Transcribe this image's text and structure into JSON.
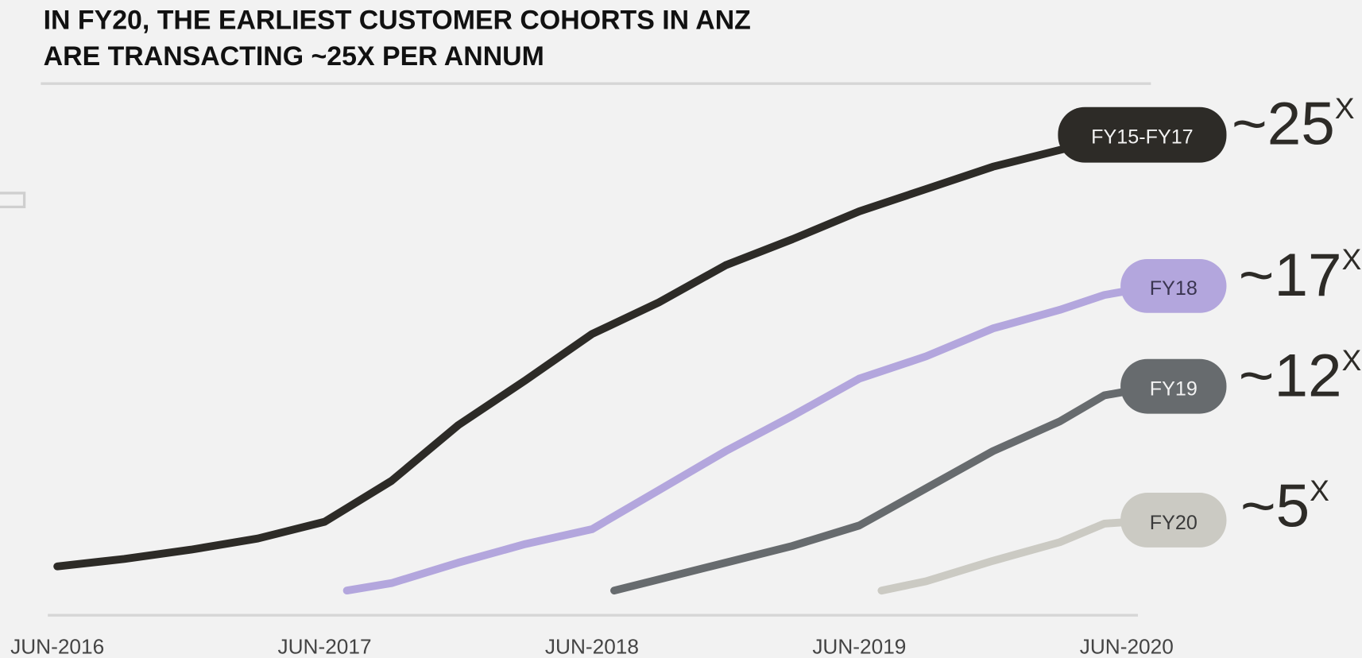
{
  "chart_data": {
    "type": "line",
    "title": "IN FY20, THE EARLIEST CUSTOMER COHORTS IN ANZ",
    "title_line2": "ARE TRANSACTING ~25X PER ANNUM",
    "xlabel": "",
    "ylabel": "",
    "x_ticks": [
      "JUN-2016",
      "JUN-2017",
      "JUN-2018",
      "JUN-2019",
      "JUN-2020"
    ],
    "xlim": [
      "2016-06",
      "2020-06"
    ],
    "ylim": [
      0,
      27
    ],
    "grid": false,
    "legend": "end-of-line labels",
    "series": [
      {
        "name": "FY15-FY17",
        "end_label": "~25",
        "end_sup": "X",
        "color": "#2d2b27",
        "label_text_color": "#f2f2f2",
        "points": [
          [
            "2016-06",
            2.3
          ],
          [
            "2016-09",
            2.7
          ],
          [
            "2016-12",
            3.2
          ],
          [
            "2017-03",
            3.8
          ],
          [
            "2017-06",
            4.7
          ],
          [
            "2017-09",
            6.9
          ],
          [
            "2017-12",
            9.9
          ],
          [
            "2018-03",
            12.3
          ],
          [
            "2018-06",
            14.8
          ],
          [
            "2018-09",
            16.5
          ],
          [
            "2018-12",
            18.5
          ],
          [
            "2019-03",
            19.9
          ],
          [
            "2019-06",
            21.4
          ],
          [
            "2019-09",
            22.6
          ],
          [
            "2019-12",
            23.8
          ],
          [
            "2020-03",
            24.7
          ],
          [
            "2020-05",
            25.3
          ]
        ]
      },
      {
        "name": "FY18",
        "end_label": "~17",
        "end_sup": "X",
        "color": "#b3a6dd",
        "label_text_color": "#3a3550",
        "points": [
          [
            "2017-07",
            1.0
          ],
          [
            "2017-09",
            1.4
          ],
          [
            "2017-12",
            2.5
          ],
          [
            "2018-03",
            3.5
          ],
          [
            "2018-06",
            4.3
          ],
          [
            "2018-09",
            6.4
          ],
          [
            "2018-12",
            8.5
          ],
          [
            "2019-03",
            10.4
          ],
          [
            "2019-06",
            12.4
          ],
          [
            "2019-09",
            13.6
          ],
          [
            "2019-12",
            15.1
          ],
          [
            "2020-03",
            16.1
          ],
          [
            "2020-05",
            16.9
          ]
        ]
      },
      {
        "name": "FY19",
        "end_label": "~12",
        "end_sup": "X",
        "color": "#676b6e",
        "label_text_color": "#f2f2f2",
        "points": [
          [
            "2018-07",
            1.0
          ],
          [
            "2018-09",
            1.6
          ],
          [
            "2018-12",
            2.5
          ],
          [
            "2019-03",
            3.4
          ],
          [
            "2019-06",
            4.5
          ],
          [
            "2019-09",
            6.5
          ],
          [
            "2019-12",
            8.5
          ],
          [
            "2020-03",
            10.1
          ],
          [
            "2020-05",
            11.5
          ]
        ]
      },
      {
        "name": "FY20",
        "end_label": "~5",
        "end_sup": "X",
        "color": "#cbcac3",
        "label_text_color": "#3a3a3a",
        "points": [
          [
            "2019-07",
            1.0
          ],
          [
            "2019-09",
            1.5
          ],
          [
            "2019-12",
            2.6
          ],
          [
            "2020-03",
            3.6
          ],
          [
            "2020-05",
            4.6
          ]
        ]
      }
    ]
  },
  "colors": {
    "background": "#f2f2f2",
    "rule": "#d6d6d6"
  }
}
